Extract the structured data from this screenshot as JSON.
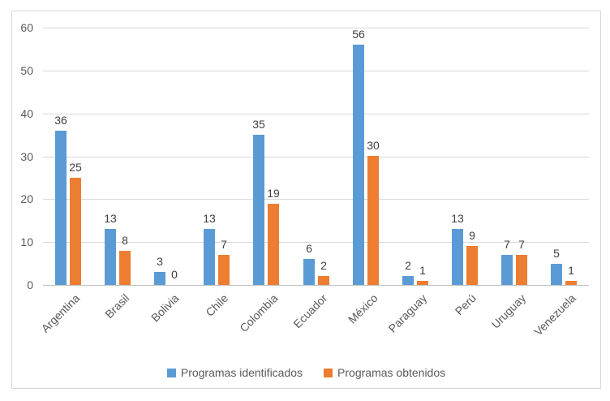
{
  "chart_data": {
    "type": "bar",
    "title": "",
    "xlabel": "",
    "ylabel": "",
    "categories": [
      "Argentina",
      "Brasil",
      "Bolivia",
      "Chile",
      "Colombia",
      "Ecuador",
      "México",
      "Paraguay",
      "Perú",
      "Uruguay",
      "Venezuela"
    ],
    "series": [
      {
        "name": "Programas identificados",
        "color": "#5b9bd5",
        "values": [
          36,
          13,
          3,
          13,
          35,
          6,
          56,
          2,
          13,
          7,
          5
        ]
      },
      {
        "name": "Programas obtenidos",
        "color": "#ed7d31",
        "values": [
          25,
          8,
          0,
          7,
          19,
          2,
          30,
          1,
          9,
          7,
          1
        ]
      }
    ],
    "ylim": [
      0,
      60
    ],
    "yticks": [
      0,
      10,
      20,
      30,
      40,
      50,
      60
    ],
    "grid": true,
    "data_labels": true,
    "legend_position": "bottom"
  },
  "colors": {
    "series1": "#5b9bd5",
    "series2": "#ed7d31",
    "gridline": "#d9d9d9",
    "axis_line": "#bfbfbf",
    "tick_text": "#595959",
    "label_text": "#404040",
    "frame_border": "#d7d7d7",
    "background": "#ffffff"
  }
}
